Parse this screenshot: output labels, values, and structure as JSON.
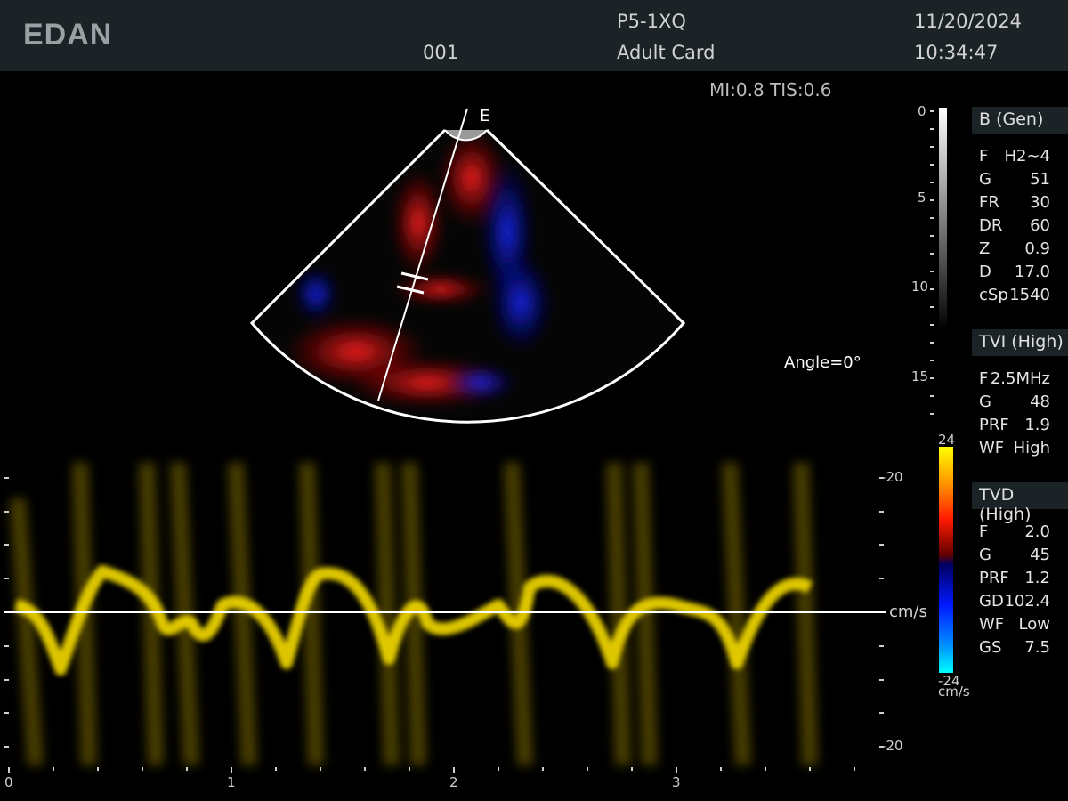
{
  "header": {
    "logo": "EDAN",
    "patient_id": "001",
    "probe": "P5-1XQ",
    "preset": "Adult Card",
    "date": "11/20/2024",
    "time": "10:34:47"
  },
  "safety": {
    "mi_tis": "MI:0.8 TIS:0.6"
  },
  "sector": {
    "marker": "E",
    "angle": "Angle=0°"
  },
  "depth_scale": {
    "ticks": [
      "0",
      "5",
      "10",
      "15"
    ]
  },
  "b_mode": {
    "title": "B (Gen)",
    "params": [
      {
        "k": "F",
        "v": "H2~4"
      },
      {
        "k": "G",
        "v": "51"
      },
      {
        "k": "FR",
        "v": "30"
      },
      {
        "k": "DR",
        "v": "60"
      },
      {
        "k": "Z",
        "v": "0.9"
      },
      {
        "k": "D",
        "v": "17.0"
      },
      {
        "k": "cSp",
        "v": "1540"
      }
    ]
  },
  "tvi": {
    "title": "TVI (High)",
    "params": [
      {
        "k": "F",
        "v": "2.5MHz"
      },
      {
        "k": "G",
        "v": "48"
      },
      {
        "k": "PRF",
        "v": "1.9"
      },
      {
        "k": "WF",
        "v": "High"
      }
    ]
  },
  "tvd": {
    "title": "TVD (High)",
    "params": [
      {
        "k": "F",
        "v": "2.0"
      },
      {
        "k": "G",
        "v": "45"
      },
      {
        "k": "PRF",
        "v": "1.2"
      },
      {
        "k": "GD",
        "v": "102.4"
      },
      {
        "k": "WF",
        "v": "Low"
      },
      {
        "k": "GS",
        "v": "7.5"
      }
    ]
  },
  "color_bar": {
    "max": "24",
    "min": "-24",
    "unit": "cm/s"
  },
  "doppler": {
    "scale_top": "–20",
    "scale_bottom": "–20",
    "unit": "cm/s",
    "time_ticks": [
      "0",
      "1",
      "2",
      "3"
    ]
  },
  "colors": {
    "topbar": "#1b2326",
    "doppler_trace": "#e8d000",
    "color_pos": "#e01010",
    "color_neg": "#1020e0"
  }
}
